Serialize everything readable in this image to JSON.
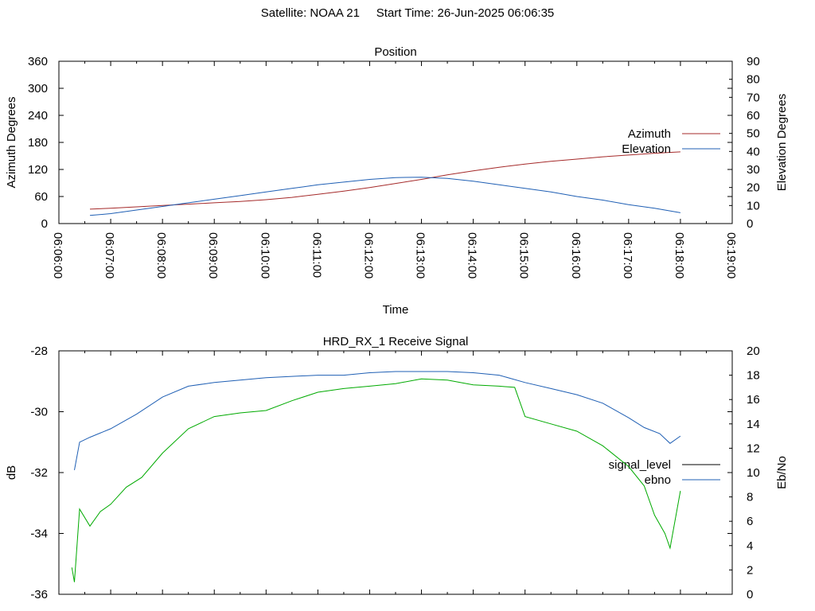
{
  "header": {
    "satellite": "Satellite: NOAA 21",
    "start_time": "Start Time: 26-Jun-2025 06:06:35"
  },
  "chart_data": [
    {
      "type": "line",
      "title": "Position",
      "xlabel": "Time",
      "ylabel": "Azimuth Degrees",
      "y2label": "Elevation Degrees",
      "x_ticks": [
        "06:06:00",
        "06:07:00",
        "06:08:00",
        "06:09:00",
        "06:10:00",
        "06:11:00",
        "06:12:00",
        "06:13:00",
        "06:14:00",
        "06:15:00",
        "06:16:00",
        "06:17:00",
        "06:18:00",
        "06:19:00"
      ],
      "x_range_minutes": [
        0,
        13
      ],
      "ylim": [
        0,
        360
      ],
      "y_ticks": [
        "0",
        "60",
        "120",
        "180",
        "240",
        "300",
        "360"
      ],
      "y2lim": [
        0,
        90
      ],
      "y2_ticks": [
        "0",
        "10",
        "20",
        "30",
        "40",
        "50",
        "60",
        "70",
        "80",
        "90"
      ],
      "legend_position": "right",
      "series": [
        {
          "name": "Azimuth",
          "axis": "left",
          "color": "#a52a2a",
          "x": [
            0.6,
            1.0,
            1.5,
            2.0,
            2.5,
            3.0,
            3.5,
            4.0,
            4.5,
            5.0,
            5.5,
            6.0,
            6.5,
            7.0,
            7.5,
            8.0,
            8.5,
            9.0,
            9.5,
            10.0,
            10.5,
            11.0,
            11.5,
            12.0
          ],
          "values": [
            32,
            34,
            37,
            40,
            43,
            46,
            49,
            53,
            58,
            65,
            72,
            80,
            89,
            98,
            108,
            117,
            125,
            132,
            138,
            143,
            148,
            152,
            156,
            159
          ]
        },
        {
          "name": "Elevation",
          "axis": "right",
          "color": "#1f5fb4",
          "x": [
            0.6,
            1.0,
            1.5,
            2.0,
            2.5,
            3.0,
            3.5,
            4.0,
            4.5,
            5.0,
            5.5,
            6.0,
            6.5,
            7.0,
            7.5,
            8.0,
            8.5,
            9.0,
            9.5,
            10.0,
            10.5,
            11.0,
            11.5,
            12.0
          ],
          "values": [
            4.5,
            5.5,
            7.5,
            9.5,
            11.5,
            13.5,
            15.5,
            17.5,
            19.5,
            21.5,
            23,
            24.5,
            25.5,
            25.7,
            25,
            23.5,
            21.5,
            19.5,
            17.5,
            15,
            13,
            10.5,
            8.5,
            6
          ]
        }
      ]
    },
    {
      "type": "line",
      "title": "HRD_RX_1 Receive Signal",
      "xlabel": "",
      "ylabel": "dB",
      "y2label": "Eb/No",
      "x_range_minutes": [
        0,
        13
      ],
      "ylim": [
        -36,
        -28
      ],
      "y_ticks": [
        "-36",
        "-34",
        "-32",
        "-30",
        "-28"
      ],
      "y2lim": [
        0,
        20
      ],
      "y2_ticks": [
        "0",
        "2",
        "4",
        "6",
        "8",
        "10",
        "12",
        "14",
        "16",
        "18",
        "20"
      ],
      "legend_position": "right",
      "series": [
        {
          "name": "signal_level",
          "axis": "left",
          "color": "#000000",
          "legend_only": true,
          "x": [],
          "values": []
        },
        {
          "name": "ebno",
          "axis": "right",
          "color": "#1f5fb4",
          "x": [
            0.3,
            0.4,
            0.6,
            1.0,
            1.5,
            2.0,
            2.5,
            3.0,
            3.5,
            4.0,
            4.5,
            5.0,
            5.5,
            6.0,
            6.5,
            7.0,
            7.5,
            8.0,
            8.5,
            9.0,
            9.5,
            10.0,
            10.5,
            11.0,
            11.3,
            11.6,
            11.8,
            12.0
          ],
          "values": [
            10.2,
            12.5,
            12.9,
            13.6,
            14.8,
            16.2,
            17.1,
            17.4,
            17.6,
            17.8,
            17.9,
            18.0,
            18.0,
            18.2,
            18.3,
            18.3,
            18.3,
            18.2,
            18.0,
            17.4,
            16.9,
            16.4,
            15.7,
            14.5,
            13.7,
            13.2,
            12.4,
            13.0
          ]
        },
        {
          "name": "",
          "axis": "right",
          "color": "#00aa00",
          "x": [
            0.25,
            0.3,
            0.4,
            0.6,
            0.8,
            1.0,
            1.3,
            1.6,
            2.0,
            2.5,
            3.0,
            3.5,
            4.0,
            4.5,
            5.0,
            5.5,
            6.0,
            6.5,
            7.0,
            7.5,
            8.0,
            8.5,
            8.8,
            9.0,
            9.5,
            10.0,
            10.5,
            11.0,
            11.3,
            11.5,
            11.7,
            11.8,
            12.0
          ],
          "values": [
            2.2,
            1.0,
            7.0,
            5.6,
            6.8,
            7.4,
            8.8,
            9.6,
            11.6,
            13.6,
            14.6,
            14.9,
            15.1,
            15.9,
            16.6,
            16.9,
            17.1,
            17.3,
            17.7,
            17.6,
            17.2,
            17.1,
            17.0,
            14.6,
            14.0,
            13.4,
            12.2,
            10.5,
            8.9,
            6.5,
            5.0,
            3.8,
            8.5
          ]
        }
      ]
    }
  ]
}
